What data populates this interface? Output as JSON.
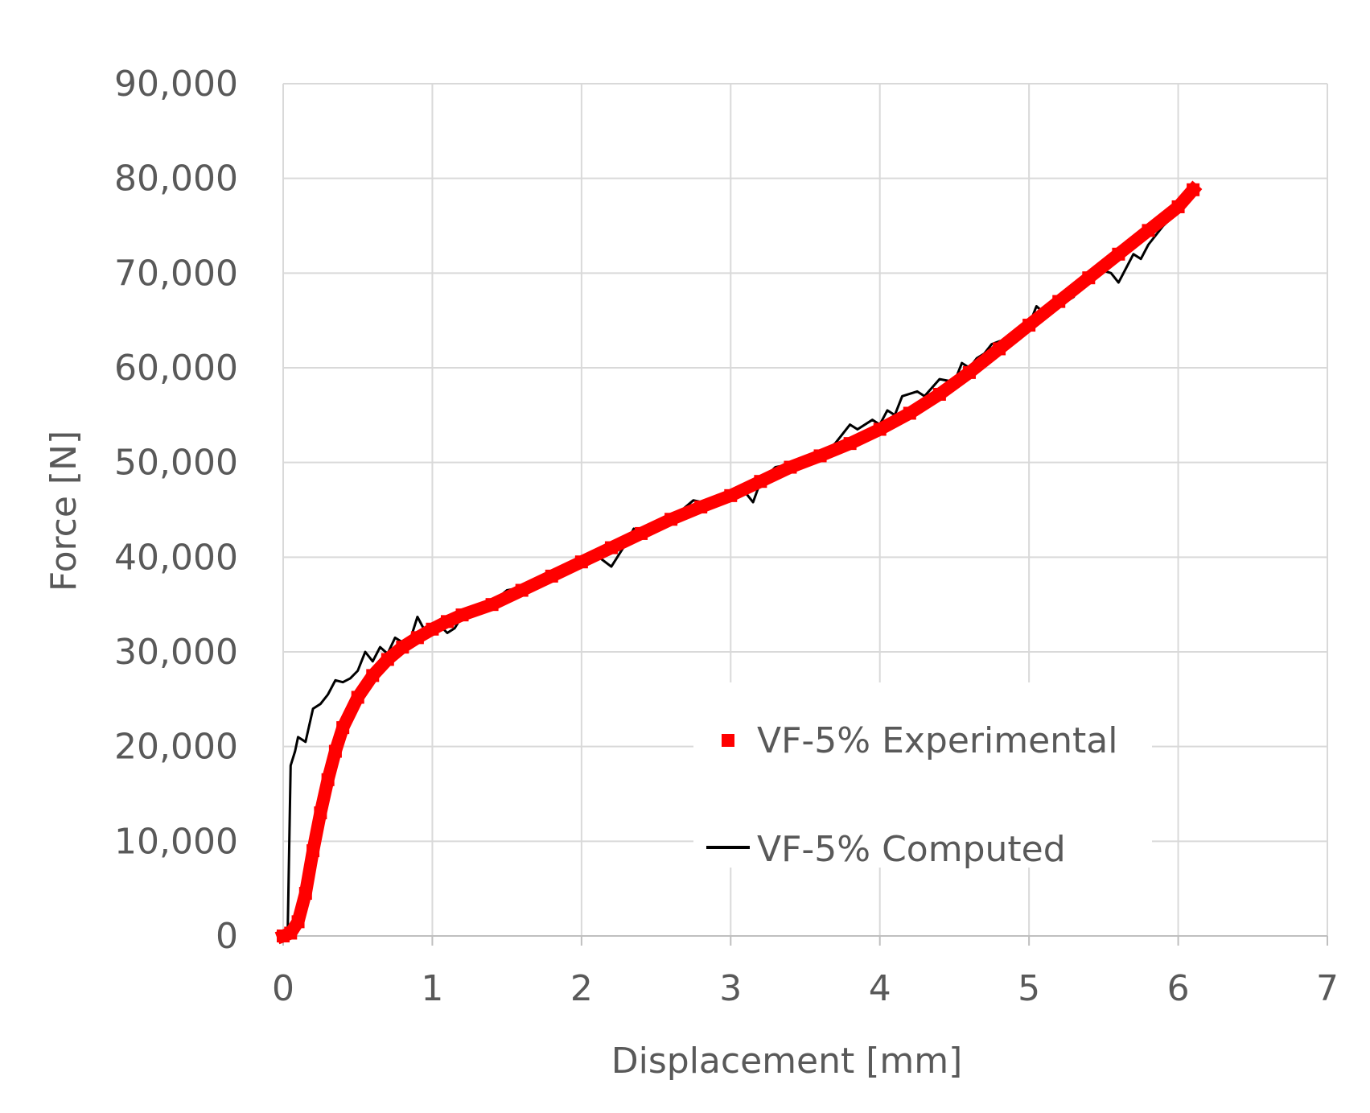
{
  "chart_data": {
    "type": "line",
    "title": "",
    "xlabel": "Displacement [mm]",
    "ylabel": "Force [N]",
    "xlim": [
      0,
      7
    ],
    "ylim": [
      0,
      90000
    ],
    "x_ticks": [
      0,
      1,
      2,
      3,
      4,
      5,
      6,
      7
    ],
    "y_ticks": [
      0,
      10000,
      20000,
      30000,
      40000,
      50000,
      60000,
      70000,
      80000,
      90000
    ],
    "x_tick_labels": [
      "0",
      "1",
      "2",
      "3",
      "4",
      "5",
      "6",
      "7"
    ],
    "y_tick_labels": [
      "0",
      "10,000",
      "20,000",
      "30,000",
      "40,000",
      "50,000",
      "60,000",
      "70,000",
      "80,000",
      "90,000"
    ],
    "grid": true,
    "legend_position": "lower-right",
    "series": [
      {
        "name": "VF-5% Experimental",
        "style": "markers",
        "color": "#ff0000",
        "points": [
          [
            0,
            0
          ],
          [
            0.05,
            300
          ],
          [
            0.1,
            1500
          ],
          [
            0.15,
            4500
          ],
          [
            0.2,
            9000
          ],
          [
            0.25,
            13000
          ],
          [
            0.3,
            16500
          ],
          [
            0.35,
            19500
          ],
          [
            0.4,
            22000
          ],
          [
            0.5,
            25200
          ],
          [
            0.6,
            27500
          ],
          [
            0.7,
            29200
          ],
          [
            0.8,
            30500
          ],
          [
            0.9,
            31500
          ],
          [
            1.0,
            32400
          ],
          [
            1.1,
            33200
          ],
          [
            1.2,
            33900
          ],
          [
            1.4,
            35000
          ],
          [
            1.6,
            36500
          ],
          [
            1.8,
            38000
          ],
          [
            2.0,
            39500
          ],
          [
            2.2,
            41000
          ],
          [
            2.4,
            42500
          ],
          [
            2.6,
            44000
          ],
          [
            2.8,
            45300
          ],
          [
            3.0,
            46500
          ],
          [
            3.2,
            48000
          ],
          [
            3.4,
            49500
          ],
          [
            3.6,
            50700
          ],
          [
            3.8,
            52000
          ],
          [
            4.0,
            53500
          ],
          [
            4.2,
            55200
          ],
          [
            4.4,
            57200
          ],
          [
            4.6,
            59500
          ],
          [
            4.8,
            62000
          ],
          [
            5.0,
            64500
          ],
          [
            5.2,
            67000
          ],
          [
            5.4,
            69500
          ],
          [
            5.6,
            72000
          ],
          [
            5.8,
            74500
          ],
          [
            6.0,
            77000
          ],
          [
            6.1,
            78800
          ]
        ]
      },
      {
        "name": "VF-5% Computed",
        "style": "line",
        "color": "#000000",
        "points": [
          [
            0,
            0
          ],
          [
            0.03,
            300
          ],
          [
            0.05,
            18000
          ],
          [
            0.08,
            19500
          ],
          [
            0.1,
            21000
          ],
          [
            0.15,
            20500
          ],
          [
            0.2,
            24000
          ],
          [
            0.25,
            24500
          ],
          [
            0.3,
            25500
          ],
          [
            0.35,
            27000
          ],
          [
            0.4,
            26800
          ],
          [
            0.45,
            27200
          ],
          [
            0.5,
            28000
          ],
          [
            0.55,
            30000
          ],
          [
            0.6,
            29000
          ],
          [
            0.65,
            30500
          ],
          [
            0.7,
            29800
          ],
          [
            0.75,
            31500
          ],
          [
            0.8,
            31000
          ],
          [
            0.85,
            31200
          ],
          [
            0.9,
            33700
          ],
          [
            0.95,
            32200
          ],
          [
            1.0,
            32400
          ],
          [
            1.05,
            32800
          ],
          [
            1.1,
            32000
          ],
          [
            1.15,
            32500
          ],
          [
            1.2,
            33800
          ],
          [
            1.3,
            35000
          ],
          [
            1.4,
            35200
          ],
          [
            1.5,
            36500
          ],
          [
            1.6,
            36800
          ],
          [
            1.7,
            37500
          ],
          [
            1.8,
            38500
          ],
          [
            1.9,
            39000
          ],
          [
            2.0,
            39500
          ],
          [
            2.1,
            40200
          ],
          [
            2.2,
            39000
          ],
          [
            2.3,
            41500
          ],
          [
            2.35,
            43000
          ],
          [
            2.4,
            42500
          ],
          [
            2.6,
            44000
          ],
          [
            2.75,
            46000
          ],
          [
            2.9,
            45500
          ],
          [
            3.0,
            46000
          ],
          [
            3.1,
            46800
          ],
          [
            3.15,
            45800
          ],
          [
            3.2,
            48000
          ],
          [
            3.3,
            49500
          ],
          [
            3.4,
            49800
          ],
          [
            3.6,
            50800
          ],
          [
            3.7,
            52000
          ],
          [
            3.8,
            54000
          ],
          [
            3.85,
            53500
          ],
          [
            3.95,
            54500
          ],
          [
            4.0,
            54000
          ],
          [
            4.05,
            55500
          ],
          [
            4.1,
            55000
          ],
          [
            4.15,
            57000
          ],
          [
            4.25,
            57500
          ],
          [
            4.3,
            57000
          ],
          [
            4.4,
            58800
          ],
          [
            4.5,
            58500
          ],
          [
            4.55,
            60500
          ],
          [
            4.6,
            60000
          ],
          [
            4.65,
            61000
          ],
          [
            4.7,
            61500
          ],
          [
            4.75,
            62500
          ],
          [
            4.8,
            62800
          ],
          [
            4.9,
            63200
          ],
          [
            5.0,
            64500
          ],
          [
            5.05,
            66500
          ],
          [
            5.1,
            65800
          ],
          [
            5.2,
            66500
          ],
          [
            5.3,
            67500
          ],
          [
            5.35,
            69500
          ],
          [
            5.4,
            69000
          ],
          [
            5.45,
            70500
          ],
          [
            5.55,
            70000
          ],
          [
            5.6,
            69000
          ],
          [
            5.7,
            72000
          ],
          [
            5.75,
            71500
          ],
          [
            5.8,
            73000
          ],
          [
            5.9,
            75000
          ],
          [
            6.0,
            76500
          ],
          [
            6.1,
            78500
          ]
        ]
      }
    ]
  }
}
